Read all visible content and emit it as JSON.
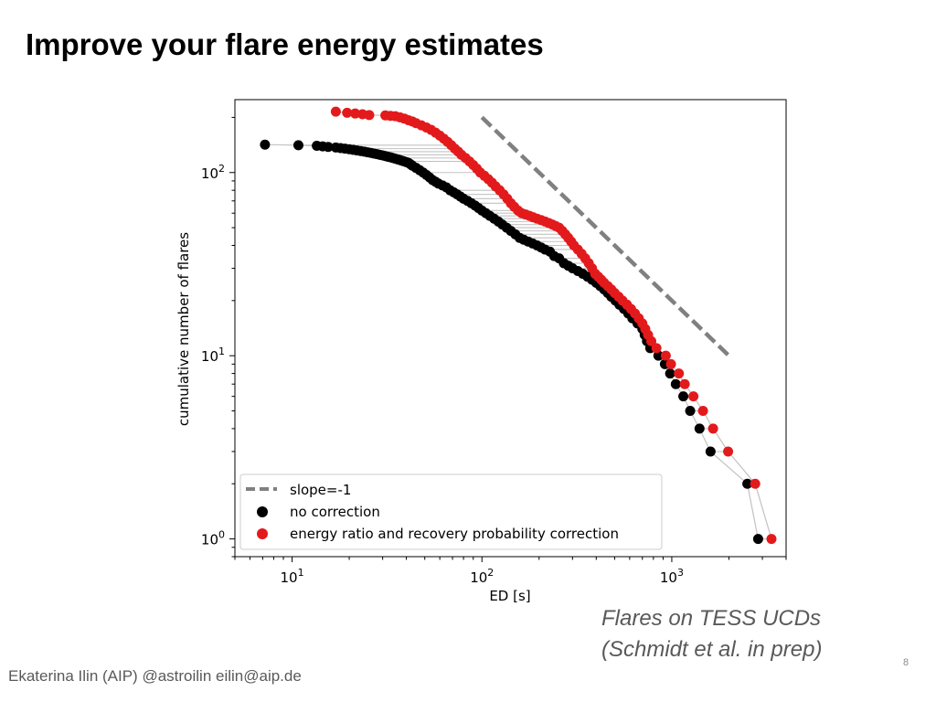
{
  "slide": {
    "title": "Improve your flare energy estimates",
    "caption_line1": "Flares on TESS UCDs",
    "caption_line2": "(Schmidt et al. in prep)",
    "footer": "Ekaterina Ilin (AIP) @astroilin eilin@aip.de",
    "page_number": "8"
  },
  "chart_data": {
    "type": "scatter",
    "xlabel": "ED [s]",
    "ylabel": "cumulative number of flares",
    "xscale": "log",
    "yscale": "log",
    "xlim": [
      5.0,
      4000
    ],
    "ylim": [
      0.8,
      250
    ],
    "x_ticks": [
      {
        "value": 10,
        "base": "10",
        "exp": "1"
      },
      {
        "value": 100,
        "base": "10",
        "exp": "2"
      },
      {
        "value": 1000,
        "base": "10",
        "exp": "3"
      }
    ],
    "y_ticks": [
      {
        "value": 1,
        "base": "10",
        "exp": "0"
      },
      {
        "value": 10,
        "base": "10",
        "exp": "1"
      },
      {
        "value": 100,
        "base": "10",
        "exp": "2"
      }
    ],
    "grid": false,
    "legend": {
      "placement": "lower-left",
      "entries": [
        "slope=-1",
        "no correction",
        "energy ratio and recovery probability correction"
      ]
    },
    "colors": {
      "no_correction": "#000000",
      "corrected": "#e31a1c",
      "slope_line": "#808080",
      "connector": "#b3b3b3"
    },
    "slope_line": {
      "name": "slope=-1",
      "x": [
        100,
        2000
      ],
      "y": [
        200,
        10
      ]
    },
    "series": [
      {
        "name": "no correction",
        "x": [
          7.2,
          10.8,
          13.5,
          14.5,
          15.5,
          17,
          18,
          19,
          20,
          21,
          22,
          23,
          24,
          25,
          26,
          27,
          28,
          29,
          30,
          31,
          32,
          33,
          34,
          35,
          36,
          37,
          38,
          39,
          40,
          41,
          42,
          43,
          45,
          47,
          49,
          51,
          53,
          55,
          57,
          59,
          62,
          65,
          68,
          71,
          74,
          77,
          80,
          84,
          88,
          92,
          96,
          100,
          105,
          110,
          116,
          122,
          128,
          135,
          142,
          150,
          158,
          166,
          175,
          185,
          195,
          205,
          215,
          228,
          240,
          255,
          270,
          285,
          300,
          320,
          340,
          360,
          380,
          400,
          420,
          440,
          460,
          480,
          505,
          530,
          560,
          590,
          620,
          660,
          700,
          720,
          740,
          770,
          850,
          920,
          980,
          1050,
          1150,
          1250,
          1400,
          1600,
          2500,
          2850
        ],
        "y": [
          142,
          141,
          140,
          139,
          138,
          137,
          136,
          135,
          134,
          133,
          132,
          131,
          130,
          129,
          128,
          127,
          126,
          125,
          124,
          123,
          122,
          121,
          120,
          119,
          118,
          117,
          116,
          115,
          114,
          113,
          111,
          109,
          106,
          103,
          100,
          97,
          94,
          91,
          89,
          87,
          85,
          83,
          80,
          78,
          76,
          74,
          72,
          70,
          68,
          66,
          64,
          62,
          60,
          58,
          56,
          54,
          52,
          50,
          48,
          46,
          44,
          43,
          42,
          41,
          40,
          39,
          38,
          37,
          35,
          34,
          32,
          31,
          30,
          29,
          28,
          27,
          26,
          25,
          24,
          23,
          22,
          21,
          20,
          19,
          18,
          17,
          16,
          15,
          14,
          13,
          12,
          11,
          10,
          9,
          8,
          7,
          6,
          5,
          4,
          3,
          2,
          1
        ]
      },
      {
        "name": "energy ratio and recovery probability correction",
        "x": [
          17,
          19.5,
          21.5,
          23.5,
          25.5,
          31,
          33,
          35,
          37,
          39,
          41,
          43,
          45,
          48,
          51,
          54,
          57,
          60,
          63,
          66,
          69,
          72,
          75,
          78,
          82,
          86,
          90,
          94,
          98,
          103,
          108,
          113,
          118,
          124,
          130,
          136,
          142,
          148,
          155,
          162,
          170,
          178,
          186,
          195,
          205,
          215,
          225,
          235,
          245,
          255,
          265,
          275,
          285,
          295,
          305,
          320,
          335,
          350,
          365,
          380,
          395,
          410,
          425,
          440,
          460,
          480,
          500,
          525,
          550,
          580,
          610,
          640,
          670,
          700,
          725,
          750,
          780,
          830,
          930,
          990,
          1090,
          1170,
          1300,
          1460,
          1650,
          1980,
          2750,
          3350
        ],
        "y": [
          215,
          212,
          210,
          208,
          206,
          205,
          204,
          203,
          200,
          197,
          193,
          190,
          186,
          181,
          176,
          171,
          165,
          159,
          153,
          147,
          141,
          135,
          130,
          125,
          120,
          115,
          110,
          105,
          100,
          96,
          92,
          88,
          84,
          80,
          76,
          72,
          68,
          65,
          62,
          60,
          59,
          58,
          57,
          56,
          55,
          54,
          53,
          52,
          51,
          50,
          48,
          46,
          44,
          42,
          40,
          38,
          36,
          34,
          32,
          30,
          28,
          27,
          26,
          25,
          24,
          23,
          22,
          21,
          20,
          19,
          18,
          17,
          16,
          15,
          14,
          13,
          12,
          11,
          10,
          9,
          8,
          7,
          6,
          5,
          4,
          3,
          2,
          1
        ]
      }
    ]
  }
}
